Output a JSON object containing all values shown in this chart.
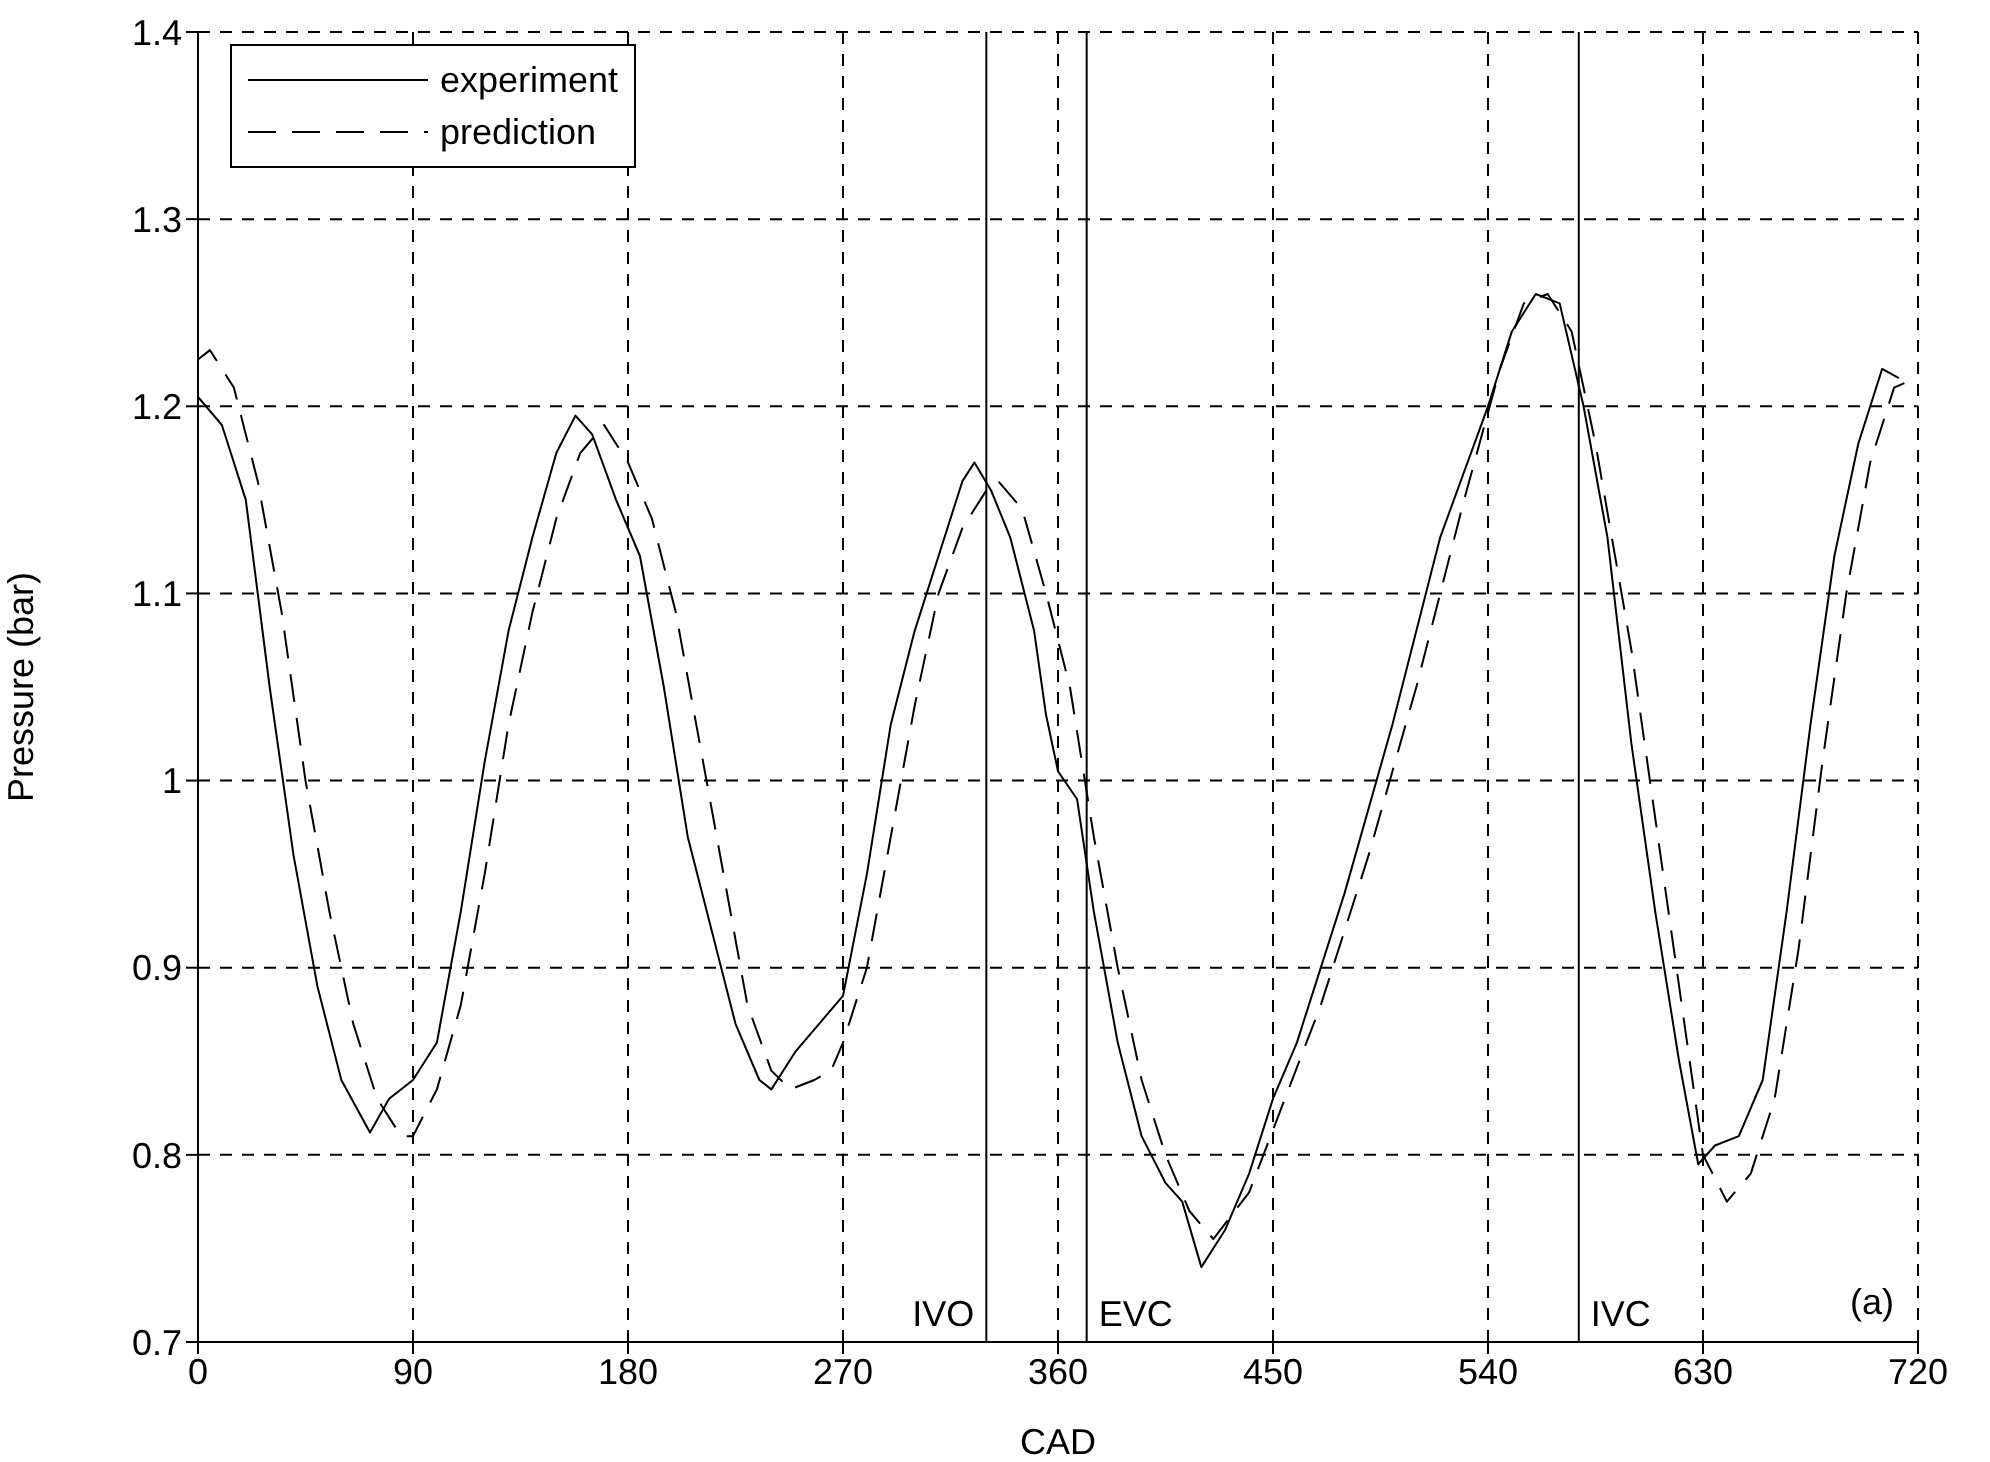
{
  "chart_data": {
    "type": "line",
    "xlabel": "CAD",
    "ylabel": "Pressure (bar)",
    "xlim": [
      0,
      720
    ],
    "xticks": [
      0,
      90,
      180,
      270,
      360,
      450,
      540,
      630,
      720
    ],
    "ylim": [
      0.7,
      1.4
    ],
    "yticks": [
      0.7,
      0.8,
      0.9,
      1,
      1.1,
      1.2,
      1.3,
      1.4
    ],
    "grid": true,
    "legend": "top left",
    "marker": "none",
    "annotations": [
      "(a)"
    ],
    "ref_lines": [
      {
        "axis": "x",
        "value": 330,
        "label": "IVO",
        "color": "#000000"
      },
      {
        "axis": "x",
        "value": 372,
        "label": "EVC",
        "color": "#000000"
      },
      {
        "axis": "x",
        "value": 578,
        "label": "IVC",
        "color": "#000000"
      }
    ],
    "series": [
      {
        "name": "experiment",
        "color": "#000000",
        "line_style": "solid",
        "x": [
          0,
          10,
          20,
          30,
          40,
          50,
          60,
          72,
          80,
          90,
          100,
          110,
          120,
          130,
          140,
          150,
          158,
          165,
          175,
          185,
          195,
          205,
          215,
          225,
          235,
          240,
          250,
          260,
          270,
          280,
          290,
          300,
          310,
          320,
          325,
          332,
          340,
          350,
          355,
          360,
          368,
          375,
          385,
          395,
          405,
          412,
          420,
          430,
          440,
          450,
          460,
          480,
          500,
          520,
          540,
          550,
          560,
          570,
          580,
          590,
          600,
          610,
          620,
          628,
          635,
          645,
          655,
          665,
          675,
          685,
          695,
          705,
          712
        ],
        "values": [
          1.205,
          1.19,
          1.15,
          1.05,
          0.96,
          0.89,
          0.84,
          0.812,
          0.83,
          0.84,
          0.86,
          0.93,
          1.01,
          1.08,
          1.13,
          1.175,
          1.195,
          1.185,
          1.15,
          1.12,
          1.05,
          0.97,
          0.92,
          0.87,
          0.84,
          0.835,
          0.855,
          0.87,
          0.885,
          0.95,
          1.03,
          1.08,
          1.12,
          1.16,
          1.17,
          1.155,
          1.13,
          1.08,
          1.035,
          1.005,
          0.99,
          0.93,
          0.86,
          0.81,
          0.785,
          0.775,
          0.74,
          0.76,
          0.79,
          0.83,
          0.86,
          0.94,
          1.03,
          1.13,
          1.2,
          1.24,
          1.26,
          1.255,
          1.2,
          1.13,
          1.02,
          0.93,
          0.85,
          0.795,
          0.805,
          0.81,
          0.84,
          0.93,
          1.03,
          1.12,
          1.18,
          1.22,
          1.215
        ]
      },
      {
        "name": "prediction",
        "color": "#000000",
        "line_style": "dashed",
        "x": [
          0,
          5,
          15,
          25,
          35,
          45,
          55,
          65,
          75,
          85,
          90,
          100,
          110,
          120,
          130,
          140,
          150,
          160,
          170,
          180,
          190,
          200,
          210,
          220,
          230,
          240,
          248,
          258,
          265,
          270,
          280,
          290,
          300,
          310,
          320,
          330,
          335,
          345,
          355,
          365,
          375,
          385,
          395,
          405,
          415,
          425,
          440,
          455,
          470,
          490,
          510,
          530,
          545,
          555,
          565,
          575,
          585,
          600,
          610,
          620,
          630,
          640,
          650,
          660,
          670,
          680,
          690,
          700,
          710,
          719
        ],
        "values": [
          1.225,
          1.23,
          1.21,
          1.16,
          1.09,
          1.0,
          0.93,
          0.87,
          0.83,
          0.81,
          0.81,
          0.835,
          0.88,
          0.95,
          1.03,
          1.09,
          1.14,
          1.175,
          1.19,
          1.17,
          1.14,
          1.09,
          1.02,
          0.95,
          0.88,
          0.845,
          0.835,
          0.84,
          0.845,
          0.86,
          0.9,
          0.97,
          1.04,
          1.1,
          1.135,
          1.155,
          1.16,
          1.145,
          1.1,
          1.05,
          0.97,
          0.9,
          0.84,
          0.8,
          0.77,
          0.755,
          0.78,
          0.83,
          0.88,
          0.96,
          1.05,
          1.15,
          1.22,
          1.255,
          1.26,
          1.24,
          1.18,
          1.07,
          0.98,
          0.89,
          0.8,
          0.775,
          0.79,
          0.83,
          0.91,
          1.01,
          1.1,
          1.17,
          1.21,
          1.215
        ]
      }
    ]
  }
}
